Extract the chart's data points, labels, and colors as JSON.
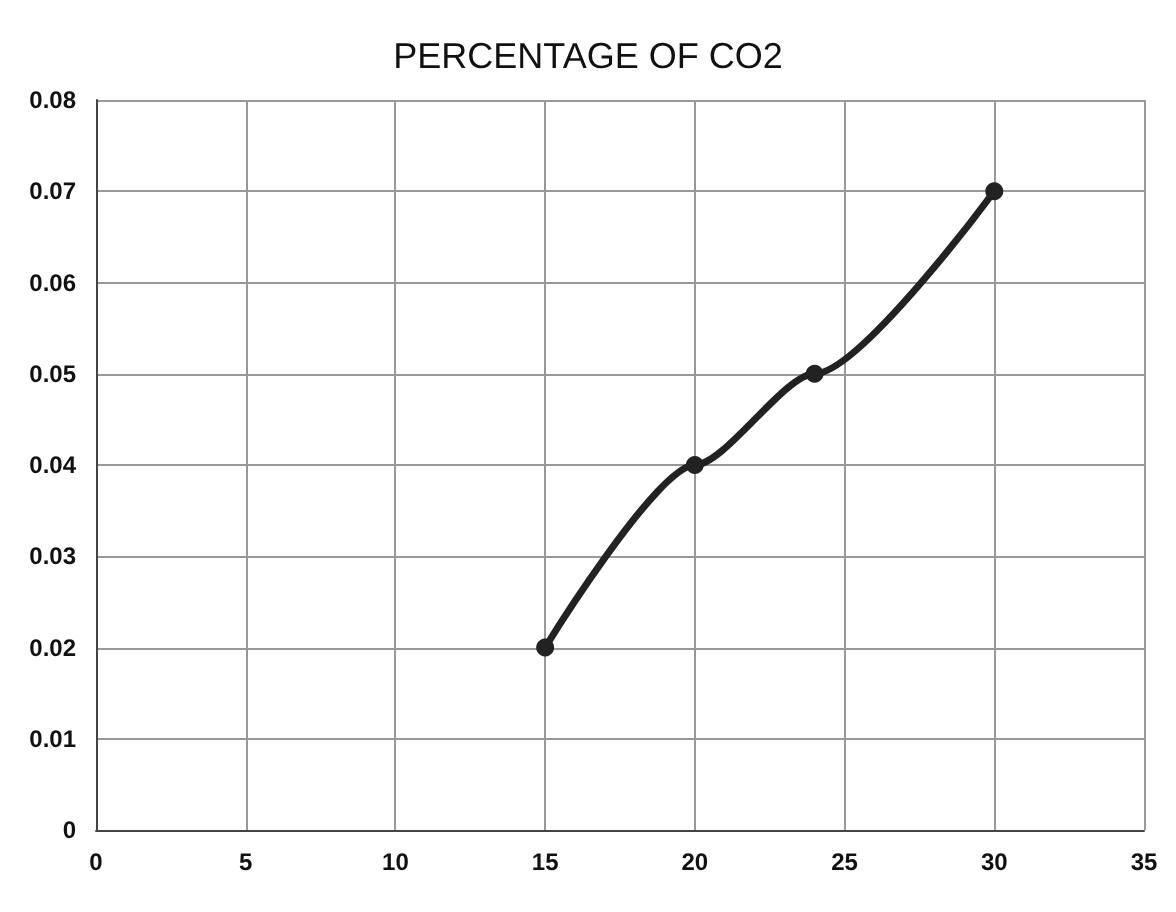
{
  "chart_data": {
    "type": "line",
    "title": "PERCENTAGE OF CO2",
    "x": [
      15,
      20,
      24,
      30
    ],
    "series": [
      {
        "color": "#222222",
        "values": [
          0.02,
          0.04,
          0.05,
          0.07
        ]
      }
    ],
    "xlim": [
      0,
      35
    ],
    "xticks": [
      0,
      5,
      10,
      15,
      20,
      25,
      30,
      35
    ],
    "ylim": [
      0,
      0.08
    ],
    "yticks": [
      0,
      0.01,
      0.02,
      0.03,
      0.04,
      0.05,
      0.06,
      0.07,
      0.08
    ],
    "grid": true,
    "marker": "circle",
    "line_style": "solid"
  }
}
